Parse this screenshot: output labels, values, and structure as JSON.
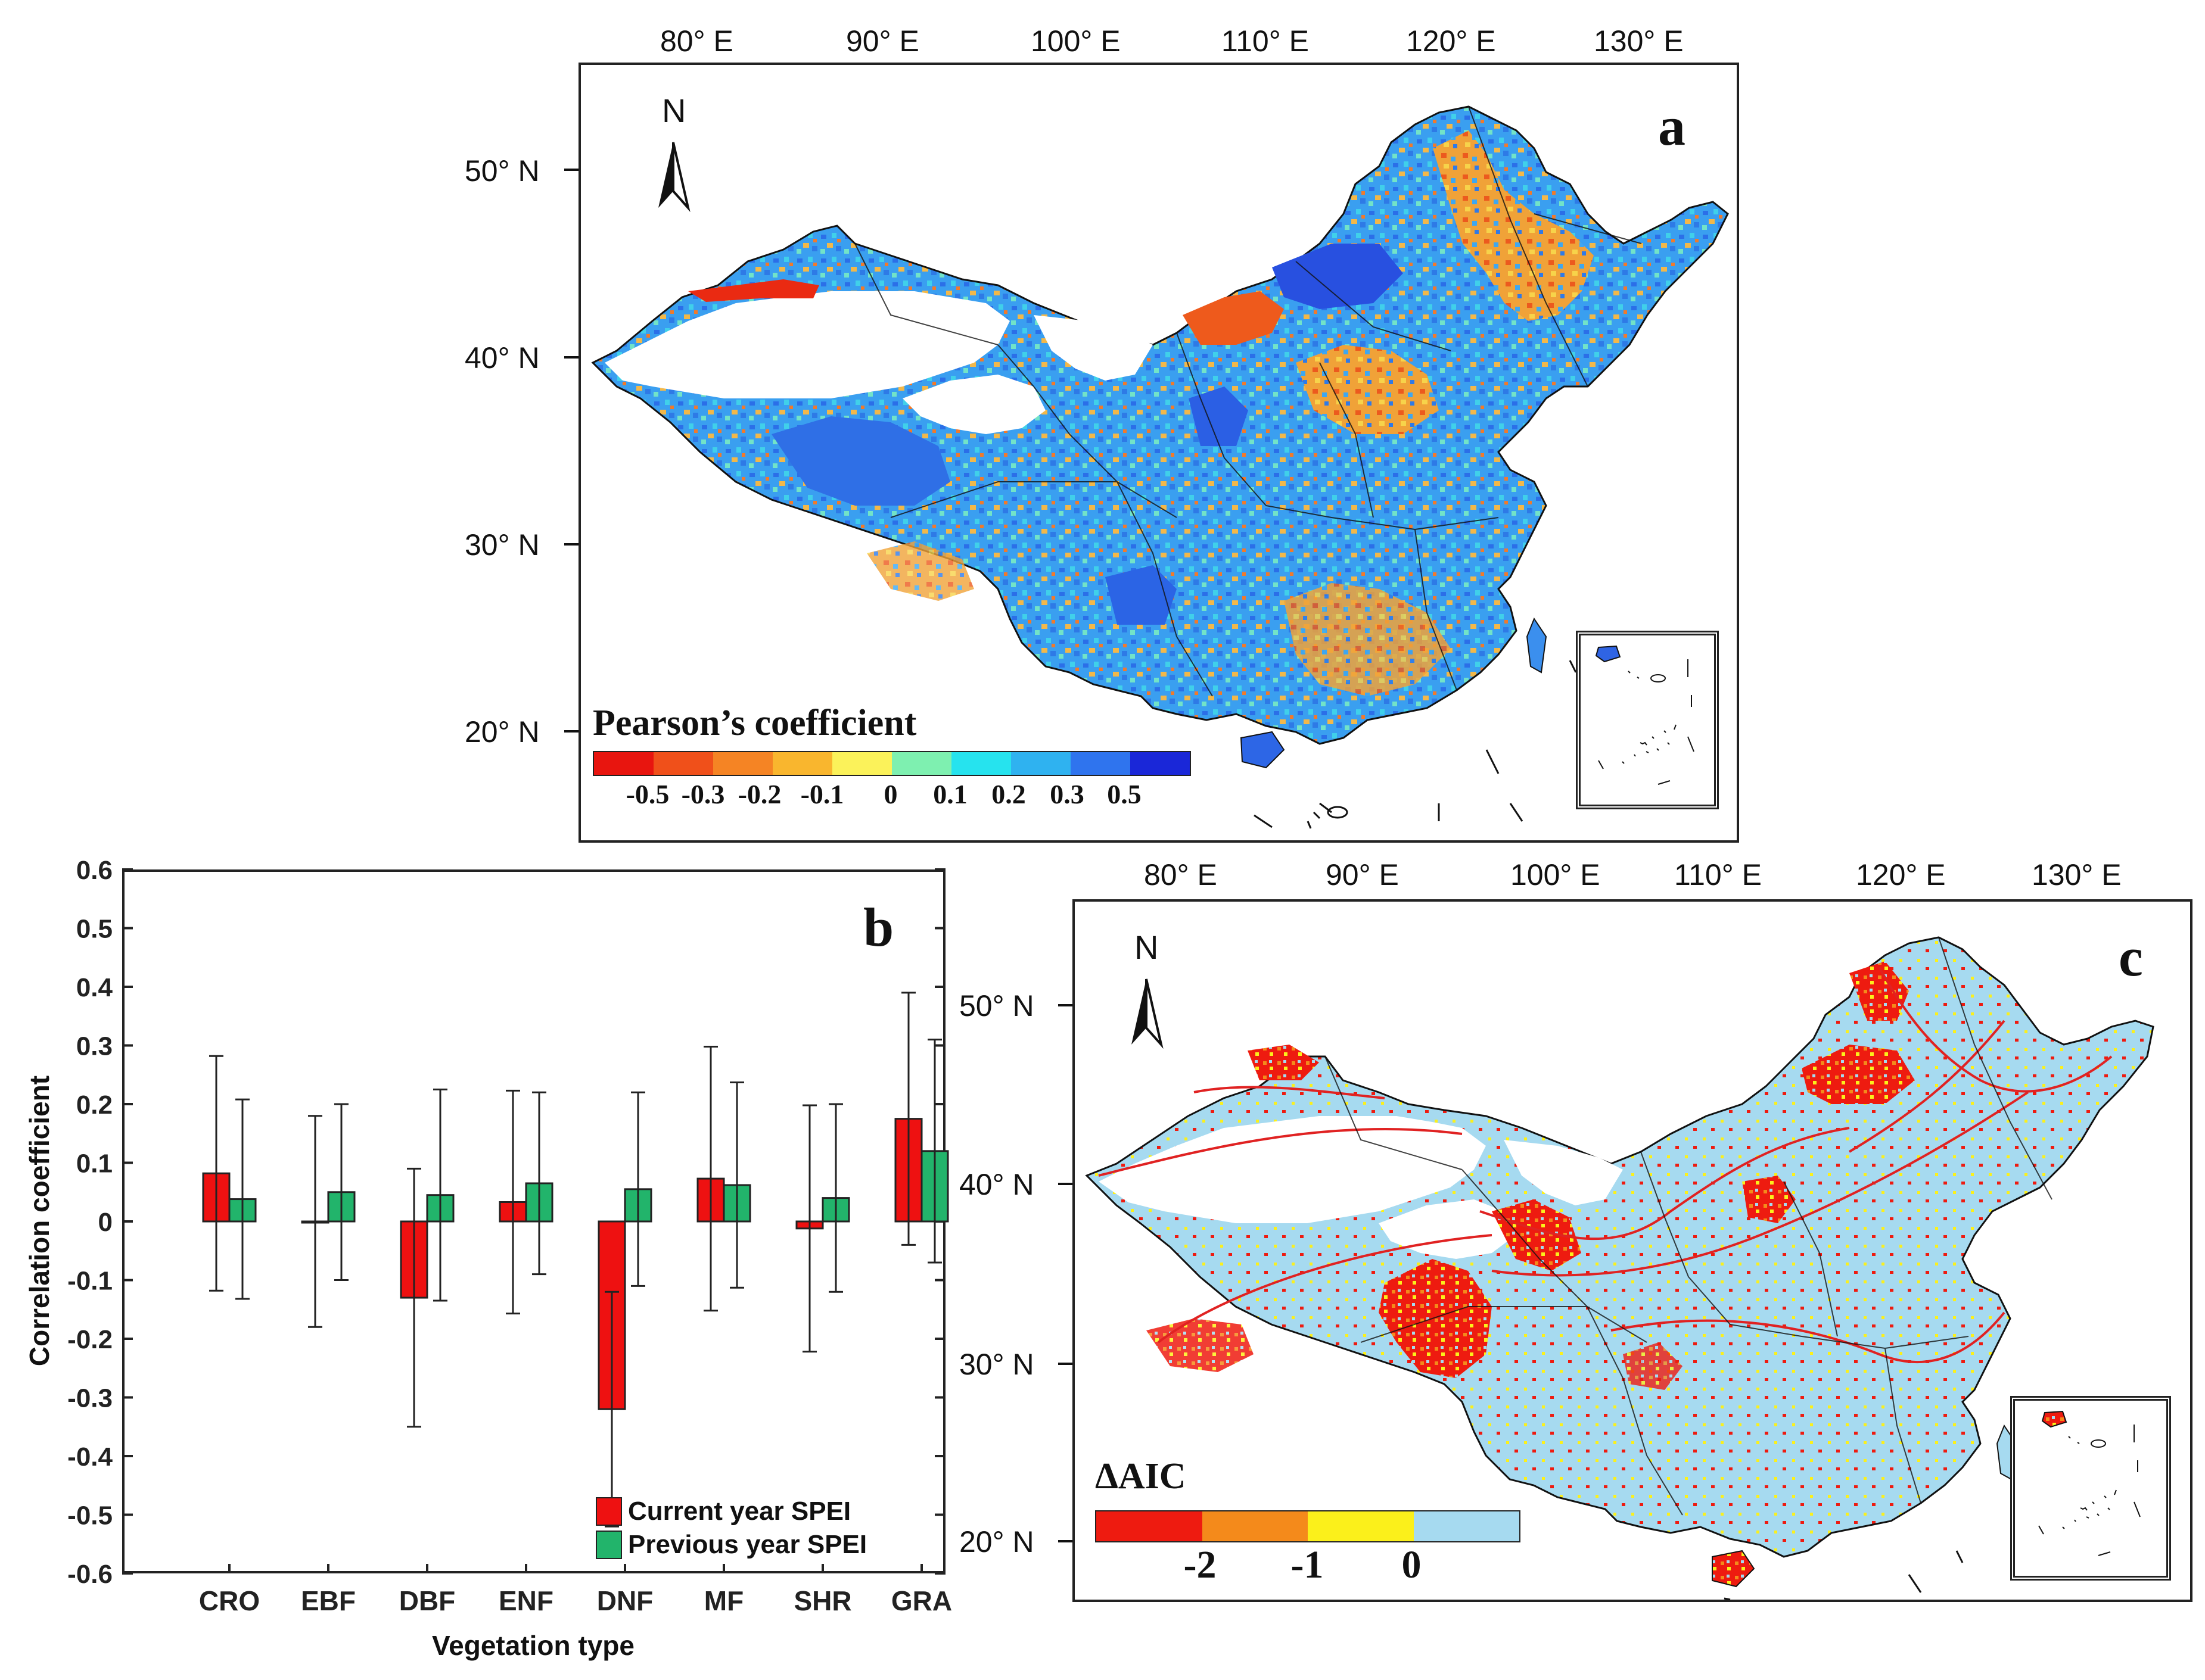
{
  "panel_a": {
    "letter": "a",
    "north": "N",
    "lon_ticks": [
      "80° E",
      "90° E",
      "100° E",
      "110° E",
      "120° E",
      "130° E"
    ],
    "lat_ticks": [
      "50° N",
      "40° N",
      "30° N",
      "20° N"
    ],
    "colorbar": {
      "title": "Pearson’s coefficient",
      "ticks": [
        "-0.5",
        "-0.3",
        "-0.2",
        "-0.1",
        "0",
        "0.1",
        "0.2",
        "0.3",
        "0.5"
      ],
      "colors": [
        "#e8150f",
        "#f0501a",
        "#f58424",
        "#f9b62e",
        "#fbf25a",
        "#7ef0b0",
        "#26e3ee",
        "#2fb2f0",
        "#2f74ee",
        "#1a27d8"
      ]
    }
  },
  "panel_c": {
    "letter": "c",
    "north": "N",
    "lon_ticks": [
      "80° E",
      "90° E",
      "100° E",
      "110° E",
      "120° E",
      "130° E"
    ],
    "lat_ticks": [
      "50° N",
      "40° N",
      "30° N",
      "20° N"
    ],
    "colorbar": {
      "title": "ΔAIC",
      "ticks": [
        "-2",
        "-1",
        "0"
      ],
      "colors": [
        "#ee1b10",
        "#f48a1b",
        "#fbf01b",
        "#a6daf0"
      ]
    }
  },
  "chart_data": {
    "type": "bar",
    "panel_letter": "b",
    "categories": [
      "CRO",
      "EBF",
      "DBF",
      "ENF",
      "DNF",
      "MF",
      "SHR",
      "GRA"
    ],
    "xlabel": "Vegetation type",
    "ylabel": "Correlation coefficient",
    "ylim": [
      -0.6,
      0.6
    ],
    "yticks": [
      "-0.6",
      "-0.5",
      "-0.4",
      "-0.3",
      "-0.2",
      "-0.1",
      "0",
      "0.1",
      "0.2",
      "0.3",
      "0.4",
      "0.5",
      "0.6"
    ],
    "legend_placement": "bottom-right",
    "series": [
      {
        "name": "Current year SPEI",
        "color": "#ee1111",
        "values": [
          0.082,
          0.0,
          -0.13,
          0.033,
          -0.32,
          0.073,
          -0.012,
          0.175
        ],
        "errors": [
          0.2,
          0.18,
          0.22,
          0.19,
          0.2,
          0.225,
          0.21,
          0.215
        ]
      },
      {
        "name": "Previous year SPEI",
        "color": "#22b46b",
        "values": [
          0.038,
          0.05,
          0.045,
          0.065,
          0.055,
          0.062,
          0.04,
          0.12
        ],
        "errors": [
          0.17,
          0.15,
          0.18,
          0.155,
          0.165,
          0.175,
          0.16,
          0.19
        ]
      }
    ]
  }
}
